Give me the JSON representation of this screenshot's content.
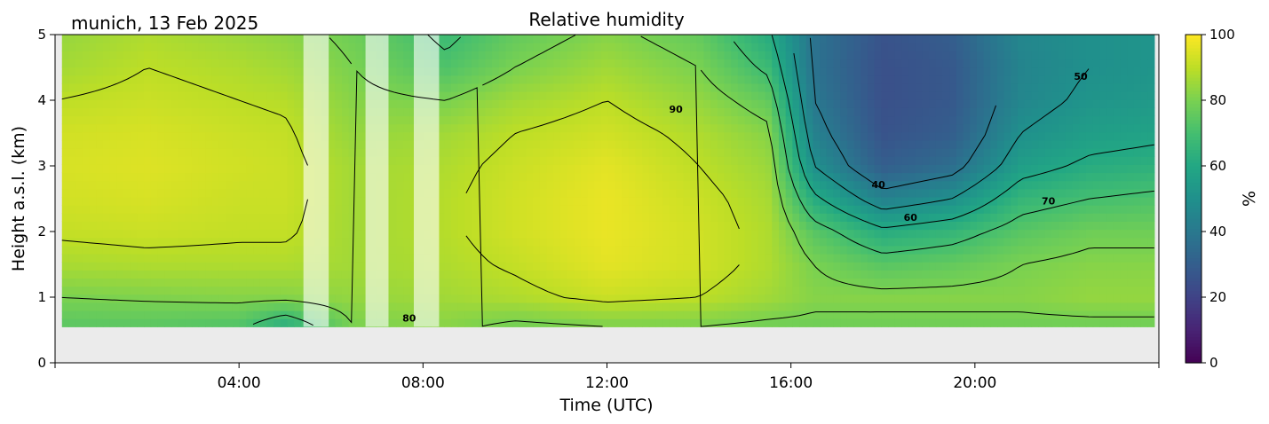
{
  "chart_data": {
    "type": "heatmap",
    "title": "Relative humidity",
    "subtitle": "munich, 13 Feb 2025",
    "xlabel": "Time (UTC)",
    "ylabel": "Height a.s.l. (km)",
    "colorbar_label": "%",
    "xlim": [
      0,
      24
    ],
    "ylim": [
      0,
      5
    ],
    "clim": [
      0,
      100
    ],
    "colormap": "viridis",
    "no_data_color": "#ebebeb",
    "x_ticks": [
      {
        "value": 4,
        "label": "04:00"
      },
      {
        "value": 8,
        "label": "08:00"
      },
      {
        "value": 12,
        "label": "12:00"
      },
      {
        "value": 16,
        "label": "16:00"
      },
      {
        "value": 20,
        "label": "20:00"
      }
    ],
    "y_ticks": [
      {
        "value": 0,
        "label": "0"
      },
      {
        "value": 1,
        "label": "1"
      },
      {
        "value": 2,
        "label": "2"
      },
      {
        "value": 3,
        "label": "3"
      },
      {
        "value": 4,
        "label": "4"
      },
      {
        "value": 5,
        "label": "5"
      }
    ],
    "colorbar_ticks": [
      {
        "value": 0,
        "label": "0"
      },
      {
        "value": 20,
        "label": "20"
      },
      {
        "value": 40,
        "label": "40"
      },
      {
        "value": 60,
        "label": "60"
      },
      {
        "value": 80,
        "label": "80"
      },
      {
        "value": 100,
        "label": "100"
      }
    ],
    "lowest_data_height_km": 0.55,
    "data_start_time_h": 0.15,
    "data_end_time_h": 23.9,
    "rain_gaps_h": [
      [
        5.4,
        5.95
      ],
      [
        6.75,
        7.25
      ],
      [
        7.8,
        8.35
      ]
    ],
    "contour_levels": [
      40,
      50,
      60,
      70,
      80,
      90
    ],
    "contour_labels": [
      {
        "label": "80",
        "x": 7.7,
        "y": 0.67
      },
      {
        "label": "90",
        "x": 13.5,
        "y": 3.85
      },
      {
        "label": "40",
        "x": 17.9,
        "y": 2.7
      },
      {
        "label": "60",
        "x": 18.6,
        "y": 2.2
      },
      {
        "label": "70",
        "x": 21.6,
        "y": 2.45
      },
      {
        "label": "50",
        "x": 22.3,
        "y": 4.35
      }
    ],
    "rh_profiles": [
      {
        "time": 0.0,
        "values": [
          [
            0.55,
            74
          ],
          [
            1.0,
            80
          ],
          [
            1.5,
            87
          ],
          [
            2.0,
            91
          ],
          [
            2.5,
            93
          ],
          [
            3.0,
            94
          ],
          [
            3.5,
            93
          ],
          [
            4.0,
            90
          ],
          [
            4.5,
            86
          ],
          [
            5.0,
            84
          ]
        ]
      },
      {
        "time": 2.0,
        "values": [
          [
            0.55,
            74
          ],
          [
            1.0,
            81
          ],
          [
            1.5,
            88
          ],
          [
            2.0,
            92
          ],
          [
            2.5,
            94
          ],
          [
            3.0,
            95
          ],
          [
            3.5,
            94
          ],
          [
            4.0,
            92
          ],
          [
            4.5,
            90
          ],
          [
            5.0,
            88
          ]
        ]
      },
      {
        "time": 4.0,
        "values": [
          [
            0.55,
            72
          ],
          [
            1.0,
            82
          ],
          [
            1.5,
            88
          ],
          [
            2.0,
            91
          ],
          [
            2.5,
            92
          ],
          [
            3.0,
            93
          ],
          [
            3.5,
            92
          ],
          [
            4.0,
            90
          ],
          [
            4.5,
            88
          ],
          [
            5.0,
            85
          ]
        ]
      },
      {
        "time": 5.0,
        "values": [
          [
            0.55,
            62
          ],
          [
            1.0,
            82
          ],
          [
            1.5,
            88
          ],
          [
            2.0,
            91
          ],
          [
            2.5,
            92
          ],
          [
            3.0,
            92
          ],
          [
            3.5,
            91
          ],
          [
            4.0,
            89
          ],
          [
            4.5,
            86
          ],
          [
            5.0,
            83
          ]
        ]
      },
      {
        "time": 6.5,
        "values": [
          [
            0.55,
            80
          ],
          [
            1.0,
            84
          ],
          [
            1.5,
            86
          ],
          [
            2.0,
            86
          ],
          [
            2.5,
            86
          ],
          [
            3.0,
            86
          ],
          [
            3.5,
            84
          ],
          [
            4.0,
            82
          ],
          [
            4.5,
            80
          ],
          [
            5.0,
            78
          ]
        ]
      },
      {
        "time": 8.5,
        "values": [
          [
            0.55,
            82
          ],
          [
            1.0,
            86
          ],
          [
            1.5,
            88
          ],
          [
            2.0,
            89
          ],
          [
            2.5,
            89
          ],
          [
            3.0,
            88
          ],
          [
            3.5,
            86
          ],
          [
            4.0,
            80
          ],
          [
            4.5,
            72
          ],
          [
            5.0,
            68
          ]
        ]
      },
      {
        "time": 10.0,
        "values": [
          [
            0.55,
            78
          ],
          [
            1.0,
            88
          ],
          [
            1.5,
            91
          ],
          [
            2.0,
            93
          ],
          [
            2.5,
            93
          ],
          [
            3.0,
            92
          ],
          [
            3.5,
            90
          ],
          [
            4.0,
            86
          ],
          [
            4.5,
            80
          ],
          [
            5.0,
            76
          ]
        ]
      },
      {
        "time": 12.0,
        "values": [
          [
            0.55,
            80
          ],
          [
            1.0,
            92
          ],
          [
            1.5,
            96
          ],
          [
            2.0,
            97
          ],
          [
            2.5,
            97
          ],
          [
            3.0,
            96
          ],
          [
            3.5,
            93
          ],
          [
            4.0,
            90
          ],
          [
            4.5,
            86
          ],
          [
            5.0,
            82
          ]
        ]
      },
      {
        "time": 14.0,
        "values": [
          [
            0.55,
            80
          ],
          [
            1.0,
            90
          ],
          [
            1.5,
            93
          ],
          [
            2.0,
            93
          ],
          [
            2.5,
            92
          ],
          [
            3.0,
            90
          ],
          [
            3.5,
            88
          ],
          [
            4.0,
            84
          ],
          [
            4.5,
            80
          ],
          [
            5.0,
            76
          ]
        ]
      },
      {
        "time": 15.5,
        "values": [
          [
            0.55,
            78
          ],
          [
            1.0,
            86
          ],
          [
            1.5,
            88
          ],
          [
            2.0,
            88
          ],
          [
            2.5,
            87
          ],
          [
            3.0,
            85
          ],
          [
            3.5,
            82
          ],
          [
            4.0,
            76
          ],
          [
            4.5,
            68
          ],
          [
            5.0,
            62
          ]
        ]
      },
      {
        "time": 16.5,
        "values": [
          [
            0.55,
            78
          ],
          [
            1.0,
            82
          ],
          [
            1.5,
            80
          ],
          [
            2.0,
            74
          ],
          [
            2.5,
            62
          ],
          [
            3.0,
            50
          ],
          [
            3.5,
            44
          ],
          [
            4.0,
            40
          ],
          [
            4.5,
            38
          ],
          [
            5.0,
            38
          ]
        ]
      },
      {
        "time": 18.0,
        "values": [
          [
            0.55,
            78
          ],
          [
            1.0,
            82
          ],
          [
            1.5,
            74
          ],
          [
            2.0,
            62
          ],
          [
            2.5,
            44
          ],
          [
            3.0,
            30
          ],
          [
            3.5,
            26
          ],
          [
            4.0,
            25
          ],
          [
            4.5,
            25
          ],
          [
            5.0,
            26
          ]
        ]
      },
      {
        "time": 19.5,
        "values": [
          [
            0.55,
            78
          ],
          [
            1.0,
            82
          ],
          [
            1.5,
            76
          ],
          [
            2.0,
            66
          ],
          [
            2.5,
            50
          ],
          [
            3.0,
            36
          ],
          [
            3.5,
            30
          ],
          [
            4.0,
            28
          ],
          [
            4.5,
            28
          ],
          [
            5.0,
            30
          ]
        ]
      },
      {
        "time": 21.0,
        "values": [
          [
            0.55,
            78
          ],
          [
            1.0,
            82
          ],
          [
            1.5,
            80
          ],
          [
            2.0,
            74
          ],
          [
            2.5,
            66
          ],
          [
            3.0,
            56
          ],
          [
            3.5,
            50
          ],
          [
            4.0,
            46
          ],
          [
            4.5,
            45
          ],
          [
            5.0,
            46
          ]
        ]
      },
      {
        "time": 22.5,
        "values": [
          [
            0.55,
            78
          ],
          [
            1.0,
            84
          ],
          [
            1.5,
            82
          ],
          [
            2.0,
            78
          ],
          [
            2.5,
            70
          ],
          [
            3.0,
            62
          ],
          [
            3.5,
            56
          ],
          [
            4.0,
            52
          ],
          [
            4.5,
            50
          ],
          [
            5.0,
            50
          ]
        ]
      },
      {
        "time": 24.0,
        "values": [
          [
            0.55,
            78
          ],
          [
            1.0,
            84
          ],
          [
            1.5,
            82
          ],
          [
            2.0,
            78
          ],
          [
            2.5,
            72
          ],
          [
            3.0,
            64
          ],
          [
            3.5,
            58
          ],
          [
            4.0,
            54
          ],
          [
            4.5,
            52
          ],
          [
            5.0,
            52
          ]
        ]
      }
    ]
  }
}
